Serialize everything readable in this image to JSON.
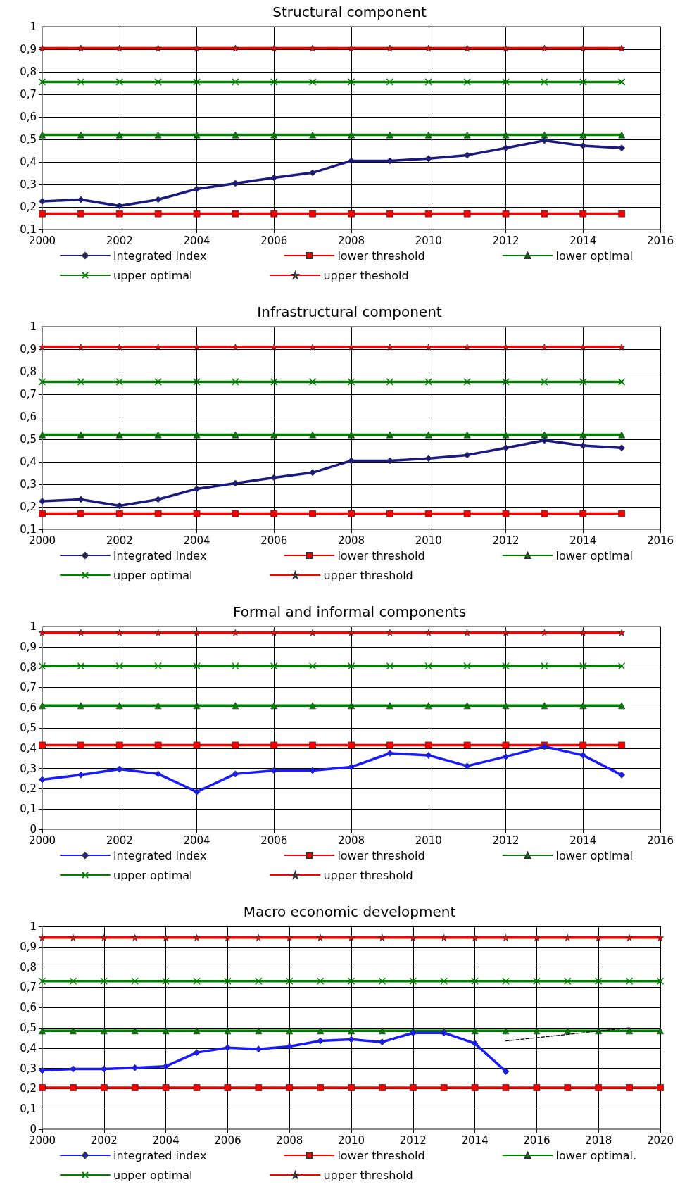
{
  "chart_data": [
    {
      "type": "line",
      "title": "Structural component",
      "x": [
        2000,
        2001,
        2002,
        2003,
        2004,
        2005,
        2006,
        2007,
        2008,
        2009,
        2010,
        2011,
        2012,
        2013,
        2014,
        2015
      ],
      "xlim": [
        2000,
        2016
      ],
      "xticks": [
        2000,
        2002,
        2004,
        2006,
        2008,
        2010,
        2012,
        2014,
        2016
      ],
      "ylim": [
        0.1,
        1
      ],
      "yticks": [
        {
          "value": 0.1,
          "label": "0,1"
        },
        {
          "value": 0.2,
          "label": "0,2"
        },
        {
          "value": 0.3,
          "label": "0,3"
        },
        {
          "value": 0.4,
          "label": "0,4"
        },
        {
          "value": 0.5,
          "label": "0,5"
        },
        {
          "value": 0.6,
          "label": "0,6"
        },
        {
          "value": 0.7,
          "label": "0,7"
        },
        {
          "value": 0.8,
          "label": "0,8"
        },
        {
          "value": 0.9,
          "label": "0,9"
        },
        {
          "value": 1,
          "label": "1"
        }
      ],
      "grid": true,
      "legend": "bottom",
      "series": [
        {
          "name": "integrated index",
          "color": "#1a1a80",
          "marker": "diamond",
          "values": [
            0.225,
            0.233,
            0.205,
            0.233,
            0.28,
            0.305,
            0.33,
            0.352,
            0.405,
            0.405,
            0.415,
            0.43,
            0.462,
            0.495,
            0.472,
            0.462
          ]
        },
        {
          "name": "lower threshold",
          "color": "#ff0000",
          "marker": "square",
          "values": [
            0.17,
            0.17,
            0.17,
            0.17,
            0.17,
            0.17,
            0.17,
            0.17,
            0.17,
            0.17,
            0.17,
            0.17,
            0.17,
            0.17,
            0.17,
            0.17
          ]
        },
        {
          "name": "lower optimal",
          "color": "#008000",
          "marker": "triangle",
          "values": [
            0.52,
            0.52,
            0.52,
            0.52,
            0.52,
            0.52,
            0.52,
            0.52,
            0.52,
            0.52,
            0.52,
            0.52,
            0.52,
            0.52,
            0.52,
            0.52
          ]
        },
        {
          "name": "upper optimal",
          "color": "#008000",
          "marker": "cross",
          "values": [
            0.755,
            0.755,
            0.755,
            0.755,
            0.755,
            0.755,
            0.755,
            0.755,
            0.755,
            0.755,
            0.755,
            0.755,
            0.755,
            0.755,
            0.755,
            0.755
          ]
        },
        {
          "name": "upper theshold",
          "color": "#ff0000",
          "marker": "star",
          "values": [
            0.905,
            0.905,
            0.905,
            0.905,
            0.905,
            0.905,
            0.905,
            0.905,
            0.905,
            0.905,
            0.905,
            0.905,
            0.905,
            0.905,
            0.905,
            0.905
          ]
        }
      ]
    },
    {
      "type": "line",
      "title": "Infrastructural component",
      "x": [
        2000,
        2001,
        2002,
        2003,
        2004,
        2005,
        2006,
        2007,
        2008,
        2009,
        2010,
        2011,
        2012,
        2013,
        2014,
        2015
      ],
      "xlim": [
        2000,
        2016
      ],
      "xticks": [
        2000,
        2002,
        2004,
        2006,
        2008,
        2010,
        2012,
        2014,
        2016
      ],
      "ylim": [
        0.1,
        1
      ],
      "yticks": [
        {
          "value": 0.1,
          "label": "0,1"
        },
        {
          "value": 0.2,
          "label": "0,2"
        },
        {
          "value": 0.3,
          "label": "0,3"
        },
        {
          "value": 0.4,
          "label": "0,4"
        },
        {
          "value": 0.5,
          "label": "0,5"
        },
        {
          "value": 0.6,
          "label": "0,6"
        },
        {
          "value": 0.7,
          "label": "0,7"
        },
        {
          "value": 0.8,
          "label": "0,8"
        },
        {
          "value": 0.9,
          "label": "0,9"
        },
        {
          "value": 1,
          "label": "1"
        }
      ],
      "grid": true,
      "legend": "bottom",
      "series": [
        {
          "name": "integrated index",
          "color": "#1a1a80",
          "marker": "diamond",
          "values": [
            0.225,
            0.233,
            0.205,
            0.233,
            0.28,
            0.305,
            0.33,
            0.352,
            0.405,
            0.405,
            0.415,
            0.43,
            0.462,
            0.495,
            0.472,
            0.462
          ]
        },
        {
          "name": "lower threshold",
          "color": "#ff0000",
          "marker": "square",
          "values": [
            0.17,
            0.17,
            0.17,
            0.17,
            0.17,
            0.17,
            0.17,
            0.17,
            0.17,
            0.17,
            0.17,
            0.17,
            0.17,
            0.17,
            0.17,
            0.17
          ]
        },
        {
          "name": "lower optimal",
          "color": "#008000",
          "marker": "triangle",
          "values": [
            0.52,
            0.52,
            0.52,
            0.52,
            0.52,
            0.52,
            0.52,
            0.52,
            0.52,
            0.52,
            0.52,
            0.52,
            0.52,
            0.52,
            0.52,
            0.52
          ]
        },
        {
          "name": "upper optimal",
          "color": "#008000",
          "marker": "cross",
          "values": [
            0.755,
            0.755,
            0.755,
            0.755,
            0.755,
            0.755,
            0.755,
            0.755,
            0.755,
            0.755,
            0.755,
            0.755,
            0.755,
            0.755,
            0.755,
            0.755
          ]
        },
        {
          "name": "upper threshold",
          "color": "#ff0000",
          "marker": "star",
          "values": [
            0.91,
            0.91,
            0.91,
            0.91,
            0.91,
            0.91,
            0.91,
            0.91,
            0.91,
            0.91,
            0.91,
            0.91,
            0.91,
            0.91,
            0.91,
            0.91
          ]
        }
      ]
    },
    {
      "type": "line",
      "title": "Formal and informal components",
      "x": [
        2000,
        2001,
        2002,
        2003,
        2004,
        2005,
        2006,
        2007,
        2008,
        2009,
        2010,
        2011,
        2012,
        2013,
        2014,
        2015
      ],
      "xlim": [
        2000,
        2016
      ],
      "xticks": [
        2000,
        2002,
        2004,
        2006,
        2008,
        2010,
        2012,
        2014,
        2016
      ],
      "ylim": [
        0,
        1
      ],
      "yticks": [
        0,
        {
          "value": 0.1,
          "label": "0,1"
        },
        {
          "value": 0.2,
          "label": "0,2"
        },
        {
          "value": 0.3,
          "label": "0,3"
        },
        {
          "value": 0.4,
          "label": "0,4"
        },
        {
          "value": 0.5,
          "label": "0,5"
        },
        {
          "value": 0.6,
          "label": "0,6"
        },
        {
          "value": 0.7,
          "label": "0,7"
        },
        {
          "value": 0.8,
          "label": "0,8"
        },
        {
          "value": 0.9,
          "label": "0,9"
        },
        {
          "value": 1,
          "label": "1"
        }
      ],
      "grid": true,
      "legend": "bottom",
      "series": [
        {
          "name": "integrated index",
          "color": "#1a1aff",
          "marker": "diamond",
          "values": [
            0.245,
            0.268,
            0.297,
            0.273,
            0.185,
            0.273,
            0.29,
            0.29,
            0.307,
            0.375,
            0.365,
            0.312,
            0.358,
            0.408,
            0.365,
            0.268
          ]
        },
        {
          "name": "lower threshold",
          "color": "#ff0000",
          "marker": "square",
          "values": [
            0.415,
            0.415,
            0.415,
            0.415,
            0.415,
            0.415,
            0.415,
            0.415,
            0.415,
            0.415,
            0.415,
            0.415,
            0.415,
            0.415,
            0.415,
            0.415
          ]
        },
        {
          "name": "lower optimal",
          "color": "#008000",
          "marker": "triangle",
          "values": [
            0.61,
            0.61,
            0.61,
            0.61,
            0.61,
            0.61,
            0.61,
            0.61,
            0.61,
            0.61,
            0.61,
            0.61,
            0.61,
            0.61,
            0.61,
            0.61
          ]
        },
        {
          "name": "upper optimal",
          "color": "#008000",
          "marker": "cross",
          "values": [
            0.805,
            0.805,
            0.805,
            0.805,
            0.805,
            0.805,
            0.805,
            0.805,
            0.805,
            0.805,
            0.805,
            0.805,
            0.805,
            0.805,
            0.805,
            0.805
          ]
        },
        {
          "name": "upper threshold",
          "color": "#ff0000",
          "marker": "star",
          "values": [
            0.97,
            0.97,
            0.97,
            0.97,
            0.97,
            0.97,
            0.97,
            0.97,
            0.97,
            0.97,
            0.97,
            0.97,
            0.97,
            0.97,
            0.97,
            0.97
          ]
        }
      ]
    },
    {
      "type": "line",
      "title": "Macro economic development",
      "x": [
        2000,
        2001,
        2002,
        2003,
        2004,
        2005,
        2006,
        2007,
        2008,
        2009,
        2010,
        2011,
        2012,
        2013,
        2014,
        2015,
        2016,
        2017,
        2018,
        2019,
        2020
      ],
      "xlim": [
        2000,
        2020
      ],
      "xticks": [
        2000,
        2002,
        2004,
        2006,
        2008,
        2010,
        2012,
        2014,
        2016,
        2018,
        2020
      ],
      "ylim": [
        0,
        1
      ],
      "yticks": [
        0,
        {
          "value": 0.1,
          "label": "0,1"
        },
        {
          "value": 0.2,
          "label": "0,2"
        },
        {
          "value": 0.3,
          "label": "0,3"
        },
        {
          "value": 0.4,
          "label": "0,4"
        },
        {
          "value": 0.5,
          "label": "0,5"
        },
        {
          "value": 0.6,
          "label": "0,6"
        },
        {
          "value": 0.7,
          "label": "0,7"
        },
        {
          "value": 0.8,
          "label": "0,8"
        },
        {
          "value": 0.9,
          "label": "0,9"
        },
        {
          "value": 1,
          "label": "1"
        }
      ],
      "grid": true,
      "legend": "bottom",
      "series": [
        {
          "name": "integrated index",
          "color": "#1a1aff",
          "marker": "diamond",
          "x": [
            2000,
            2001,
            2002,
            2003,
            2004,
            2005,
            2006,
            2007,
            2008,
            2009,
            2010,
            2011,
            2012,
            2013,
            2014,
            2015
          ],
          "values": [
            0.29,
            0.297,
            0.297,
            0.303,
            0.31,
            0.378,
            0.402,
            0.395,
            0.408,
            0.436,
            0.443,
            0.43,
            0.475,
            0.475,
            0.423,
            0.285
          ]
        },
        {
          "name": "lower threshold",
          "color": "#ff0000",
          "marker": "square",
          "values": [
            0.205,
            0.205,
            0.205,
            0.205,
            0.205,
            0.205,
            0.205,
            0.205,
            0.205,
            0.205,
            0.205,
            0.205,
            0.205,
            0.205,
            0.205,
            0.205,
            0.205,
            0.205,
            0.205,
            0.205,
            0.205
          ]
        },
        {
          "name": "lower optimal.",
          "color": "#008000",
          "marker": "triangle",
          "values": [
            0.485,
            0.485,
            0.485,
            0.485,
            0.485,
            0.485,
            0.485,
            0.485,
            0.485,
            0.485,
            0.485,
            0.485,
            0.485,
            0.485,
            0.485,
            0.485,
            0.485,
            0.485,
            0.485,
            0.485,
            0.485
          ]
        },
        {
          "name": "upper optimal",
          "color": "#008000",
          "marker": "cross",
          "values": [
            0.73,
            0.73,
            0.73,
            0.73,
            0.73,
            0.73,
            0.73,
            0.73,
            0.73,
            0.73,
            0.73,
            0.73,
            0.73,
            0.73,
            0.73,
            0.73,
            0.73,
            0.73,
            0.73,
            0.73,
            0.73
          ]
        },
        {
          "name": "upper threshold",
          "color": "#ff0000",
          "marker": "star",
          "values": [
            0.945,
            0.945,
            0.945,
            0.945,
            0.945,
            0.945,
            0.945,
            0.945,
            0.945,
            0.945,
            0.945,
            0.945,
            0.945,
            0.945,
            0.945,
            0.945,
            0.945,
            0.945,
            0.945,
            0.945,
            0.945
          ]
        },
        {
          "color": "#000000",
          "marker": "none",
          "line_style": "dashed",
          "x": [
            2015,
            2019
          ],
          "values": [
            0.435,
            0.5
          ]
        }
      ]
    }
  ]
}
